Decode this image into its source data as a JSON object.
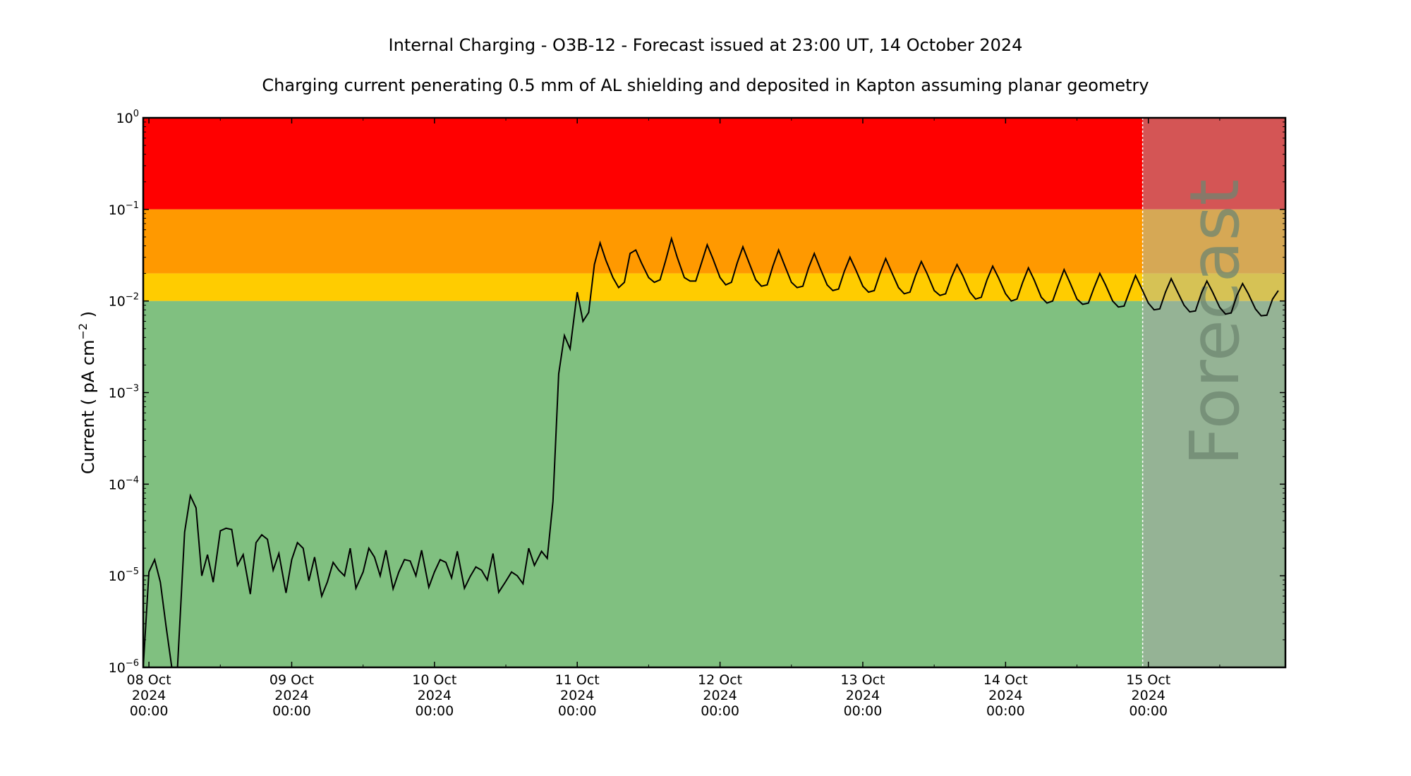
{
  "chart_data": {
    "type": "line",
    "title": "Internal Charging - O3B-12 - Forecast issued at 23:00 UT, 14 October 2024",
    "subtitle": "Charging current penerating 0.5 mm of AL shielding and deposited in Kapton assuming planar geometry",
    "ylabel_prefix": "Current ( pA cm",
    "ylabel_exp": "−2",
    "ylabel_suffix": " )",
    "yscale": "log",
    "ylim": [
      1e-06,
      1
    ],
    "xlim_days": [
      0,
      8
    ],
    "grid": false,
    "yticks": [
      {
        "base": "10",
        "exp": "−6",
        "value": 1e-06
      },
      {
        "base": "10",
        "exp": "−5",
        "value": 1e-05
      },
      {
        "base": "10",
        "exp": "−4",
        "value": 0.0001
      },
      {
        "base": "10",
        "exp": "−3",
        "value": 0.001
      },
      {
        "base": "10",
        "exp": "−2",
        "value": 0.01
      },
      {
        "base": "10",
        "exp": "−1",
        "value": 0.1
      },
      {
        "base": "10",
        "exp": "0",
        "value": 1
      }
    ],
    "xticks": [
      {
        "day": 0.04,
        "line1": "08 Oct",
        "line2": "2024",
        "line3": "00:00"
      },
      {
        "day": 1.04,
        "line1": "09 Oct",
        "line2": "2024",
        "line3": "00:00"
      },
      {
        "day": 2.04,
        "line1": "10 Oct",
        "line2": "2024",
        "line3": "00:00"
      },
      {
        "day": 3.04,
        "line1": "11 Oct",
        "line2": "2024",
        "line3": "00:00"
      },
      {
        "day": 4.04,
        "line1": "12 Oct",
        "line2": "2024",
        "line3": "00:00"
      },
      {
        "day": 5.04,
        "line1": "13 Oct",
        "line2": "2024",
        "line3": "00:00"
      },
      {
        "day": 6.04,
        "line1": "14 Oct",
        "line2": "2024",
        "line3": "00:00"
      },
      {
        "day": 7.04,
        "line1": "15 Oct",
        "line2": "2024",
        "line3": "00:00"
      }
    ],
    "threshold_bands": [
      {
        "from": 0.1,
        "to": 1,
        "color": "#ff0000",
        "forecast_color": "#d45555"
      },
      {
        "from": 0.02,
        "to": 0.1,
        "color": "#ff9900",
        "forecast_color": "#d6a855"
      },
      {
        "from": 0.01,
        "to": 0.02,
        "color": "#ffcc00",
        "forecast_color": "#d6c255"
      },
      {
        "from": 1e-06,
        "to": 0.01,
        "color": "#80c080",
        "forecast_color": "#95b395"
      }
    ],
    "forecast_start_day": 7.0,
    "forecast_label": "Forecast",
    "line_color": "#000000",
    "series": [
      {
        "values": [
          [
            0.0,
            1e-06
          ],
          [
            0.04,
            1.1e-05
          ],
          [
            0.08,
            1.5e-05
          ],
          [
            0.12,
            8.5e-06
          ],
          [
            0.16,
            2.8e-06
          ],
          [
            0.2,
            1e-06
          ],
          [
            0.24,
            1e-06
          ],
          [
            0.29,
            3e-05
          ],
          [
            0.33,
            7.5e-05
          ],
          [
            0.37,
            5.5e-05
          ],
          [
            0.41,
            1e-05
          ],
          [
            0.45,
            1.7e-05
          ],
          [
            0.49,
            8.5e-06
          ],
          [
            0.54,
            3.1e-05
          ],
          [
            0.58,
            3.3e-05
          ],
          [
            0.62,
            3.2e-05
          ],
          [
            0.66,
            1.3e-05
          ],
          [
            0.7,
            1.7e-05
          ],
          [
            0.75,
            6.3e-06
          ],
          [
            0.79,
            2.3e-05
          ],
          [
            0.83,
            2.8e-05
          ],
          [
            0.87,
            2.5e-05
          ],
          [
            0.91,
            1.15e-05
          ],
          [
            0.95,
            1.75e-05
          ],
          [
            1.0,
            6.5e-06
          ],
          [
            1.04,
            1.5e-05
          ],
          [
            1.08,
            2.3e-05
          ],
          [
            1.12,
            2e-05
          ],
          [
            1.16,
            8.8e-06
          ],
          [
            1.2,
            1.6e-05
          ],
          [
            1.25,
            6e-06
          ],
          [
            1.29,
            8.6e-06
          ],
          [
            1.33,
            1.4e-05
          ],
          [
            1.37,
            1.15e-05
          ],
          [
            1.41,
            1e-05
          ],
          [
            1.45,
            2e-05
          ],
          [
            1.49,
            7.3e-06
          ],
          [
            1.54,
            1.1e-05
          ],
          [
            1.58,
            2e-05
          ],
          [
            1.62,
            1.6e-05
          ],
          [
            1.66,
            1e-05
          ],
          [
            1.7,
            1.9e-05
          ],
          [
            1.75,
            7.2e-06
          ],
          [
            1.79,
            1.1e-05
          ],
          [
            1.83,
            1.5e-05
          ],
          [
            1.87,
            1.45e-05
          ],
          [
            1.91,
            1e-05
          ],
          [
            1.95,
            1.9e-05
          ],
          [
            2.0,
            7.5e-06
          ],
          [
            2.04,
            1.1e-05
          ],
          [
            2.08,
            1.5e-05
          ],
          [
            2.12,
            1.4e-05
          ],
          [
            2.16,
            9.5e-06
          ],
          [
            2.2,
            1.85e-05
          ],
          [
            2.25,
            7.3e-06
          ],
          [
            2.29,
            9.8e-06
          ],
          [
            2.33,
            1.25e-05
          ],
          [
            2.37,
            1.15e-05
          ],
          [
            2.41,
            9e-06
          ],
          [
            2.45,
            1.75e-05
          ],
          [
            2.49,
            6.6e-06
          ],
          [
            2.54,
            8.7e-06
          ],
          [
            2.58,
            1.1e-05
          ],
          [
            2.62,
            1e-05
          ],
          [
            2.66,
            8.2e-06
          ],
          [
            2.7,
            2e-05
          ],
          [
            2.74,
            1.3e-05
          ],
          [
            2.79,
            1.85e-05
          ],
          [
            2.83,
            1.55e-05
          ],
          [
            2.87,
            6.5e-05
          ],
          [
            2.91,
            0.0016
          ],
          [
            2.95,
            0.0042
          ],
          [
            2.99,
            0.003
          ],
          [
            3.04,
            0.0125
          ],
          [
            3.08,
            0.006
          ],
          [
            3.12,
            0.0075
          ],
          [
            3.16,
            0.025
          ],
          [
            3.2,
            0.043
          ],
          [
            3.24,
            0.028
          ],
          [
            3.29,
            0.018
          ],
          [
            3.33,
            0.014
          ],
          [
            3.37,
            0.016
          ],
          [
            3.41,
            0.033
          ],
          [
            3.45,
            0.036
          ],
          [
            3.49,
            0.026
          ],
          [
            3.54,
            0.018
          ],
          [
            3.58,
            0.016
          ],
          [
            3.62,
            0.017
          ],
          [
            3.66,
            0.028
          ],
          [
            3.7,
            0.048
          ],
          [
            3.74,
            0.03
          ],
          [
            3.79,
            0.018
          ],
          [
            3.83,
            0.0165
          ],
          [
            3.87,
            0.0165
          ],
          [
            3.91,
            0.026
          ],
          [
            3.95,
            0.041
          ],
          [
            3.99,
            0.029
          ],
          [
            4.04,
            0.018
          ],
          [
            4.08,
            0.015
          ],
          [
            4.12,
            0.016
          ],
          [
            4.16,
            0.026
          ],
          [
            4.2,
            0.039
          ],
          [
            4.24,
            0.027
          ],
          [
            4.29,
            0.017
          ],
          [
            4.33,
            0.0145
          ],
          [
            4.37,
            0.015
          ],
          [
            4.41,
            0.024
          ],
          [
            4.45,
            0.036
          ],
          [
            4.49,
            0.025
          ],
          [
            4.54,
            0.016
          ],
          [
            4.58,
            0.014
          ],
          [
            4.62,
            0.0145
          ],
          [
            4.66,
            0.023
          ],
          [
            4.7,
            0.033
          ],
          [
            4.74,
            0.023
          ],
          [
            4.79,
            0.015
          ],
          [
            4.83,
            0.013
          ],
          [
            4.87,
            0.0135
          ],
          [
            4.91,
            0.021
          ],
          [
            4.95,
            0.03
          ],
          [
            4.99,
            0.022
          ],
          [
            5.04,
            0.0145
          ],
          [
            5.08,
            0.0125
          ],
          [
            5.12,
            0.013
          ],
          [
            5.16,
            0.02
          ],
          [
            5.2,
            0.029
          ],
          [
            5.24,
            0.021
          ],
          [
            5.29,
            0.014
          ],
          [
            5.33,
            0.012
          ],
          [
            5.37,
            0.0125
          ],
          [
            5.41,
            0.019
          ],
          [
            5.45,
            0.027
          ],
          [
            5.49,
            0.02
          ],
          [
            5.54,
            0.013
          ],
          [
            5.58,
            0.0115
          ],
          [
            5.62,
            0.012
          ],
          [
            5.66,
            0.018
          ],
          [
            5.7,
            0.025
          ],
          [
            5.74,
            0.019
          ],
          [
            5.79,
            0.0125
          ],
          [
            5.83,
            0.0105
          ],
          [
            5.87,
            0.011
          ],
          [
            5.91,
            0.017
          ],
          [
            5.95,
            0.024
          ],
          [
            5.99,
            0.018
          ],
          [
            6.04,
            0.012
          ],
          [
            6.08,
            0.01
          ],
          [
            6.12,
            0.0105
          ],
          [
            6.16,
            0.016
          ],
          [
            6.2,
            0.023
          ],
          [
            6.24,
            0.017
          ],
          [
            6.29,
            0.011
          ],
          [
            6.33,
            0.0095
          ],
          [
            6.37,
            0.01
          ],
          [
            6.41,
            0.015
          ],
          [
            6.45,
            0.022
          ],
          [
            6.49,
            0.016
          ],
          [
            6.54,
            0.0105
          ],
          [
            6.58,
            0.0092
          ],
          [
            6.62,
            0.0095
          ],
          [
            6.66,
            0.014
          ],
          [
            6.7,
            0.02
          ],
          [
            6.74,
            0.015
          ],
          [
            6.79,
            0.01
          ],
          [
            6.83,
            0.0086
          ],
          [
            6.87,
            0.0088
          ],
          [
            6.91,
            0.013
          ],
          [
            6.95,
            0.019
          ],
          [
            6.99,
            0.014
          ],
          [
            7.04,
            0.0095
          ],
          [
            7.08,
            0.008
          ],
          [
            7.12,
            0.0082
          ],
          [
            7.16,
            0.0125
          ],
          [
            7.2,
            0.0175
          ],
          [
            7.24,
            0.013
          ],
          [
            7.29,
            0.009
          ],
          [
            7.33,
            0.0076
          ],
          [
            7.37,
            0.0078
          ],
          [
            7.41,
            0.012
          ],
          [
            7.45,
            0.0165
          ],
          [
            7.49,
            0.0125
          ],
          [
            7.54,
            0.0085
          ],
          [
            7.58,
            0.0072
          ],
          [
            7.62,
            0.0074
          ],
          [
            7.66,
            0.0115
          ],
          [
            7.7,
            0.0155
          ],
          [
            7.74,
            0.012
          ],
          [
            7.79,
            0.0082
          ],
          [
            7.83,
            0.0069
          ],
          [
            7.87,
            0.007
          ],
          [
            7.91,
            0.0105
          ],
          [
            7.95,
            0.013
          ]
        ]
      }
    ]
  }
}
